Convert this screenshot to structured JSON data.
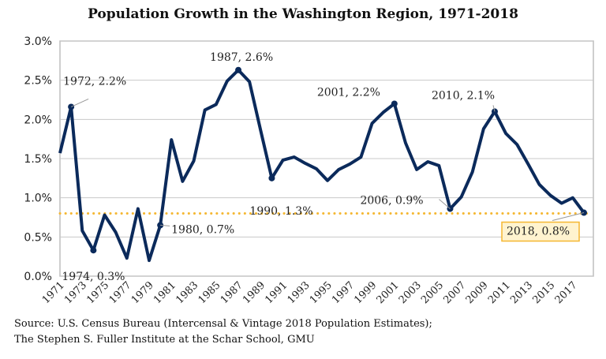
{
  "chart_data": {
    "type": "line",
    "title": "Population Growth in the Washington Region, 1971-2018",
    "xlabel": "",
    "ylabel": "",
    "ylim": [
      0,
      3.0
    ],
    "yticks": [
      "0.0%",
      "0.5%",
      "1.0%",
      "1.5%",
      "2.0%",
      "2.5%",
      "3.0%"
    ],
    "xticks": [
      "1971",
      "1973",
      "1975",
      "1977",
      "1979",
      "1981",
      "1983",
      "1985",
      "1987",
      "1989",
      "1991",
      "1993",
      "1995",
      "1997",
      "1999",
      "2001",
      "2003",
      "2005",
      "2007",
      "2009",
      "2011",
      "2013",
      "2015",
      "2017"
    ],
    "grid": true,
    "line_color": "#0b2a5b",
    "average_line": {
      "value": 0.8,
      "color": "#f5b731",
      "style": "dotted"
    },
    "x": [
      1971,
      1972,
      1973,
      1974,
      1975,
      1976,
      1977,
      1978,
      1979,
      1980,
      1981,
      1982,
      1983,
      1984,
      1985,
      1986,
      1987,
      1988,
      1989,
      1990,
      1991,
      1992,
      1993,
      1994,
      1995,
      1996,
      1997,
      1998,
      1999,
      2000,
      2001,
      2002,
      2003,
      2004,
      2005,
      2006,
      2007,
      2008,
      2009,
      2010,
      2011,
      2012,
      2013,
      2014,
      2015,
      2016,
      2017,
      2018
    ],
    "values": [
      1.57,
      2.16,
      0.58,
      0.33,
      0.78,
      0.56,
      0.23,
      0.86,
      0.2,
      0.65,
      1.74,
      1.21,
      1.47,
      2.12,
      2.19,
      2.49,
      2.63,
      2.48,
      1.86,
      1.25,
      1.48,
      1.52,
      1.44,
      1.37,
      1.22,
      1.36,
      1.43,
      1.52,
      1.95,
      2.09,
      2.2,
      1.7,
      1.36,
      1.46,
      1.41,
      0.86,
      1.01,
      1.33,
      1.88,
      2.1,
      1.82,
      1.68,
      1.43,
      1.17,
      1.03,
      0.93,
      1.0,
      0.81
    ],
    "annotations": [
      {
        "year": 1972,
        "text": "1972, 2.2%"
      },
      {
        "year": 1974,
        "text": "1974, 0.3%"
      },
      {
        "year": 1980,
        "text": "1980, 0.7%"
      },
      {
        "year": 1987,
        "text": "1987, 2.6%"
      },
      {
        "year": 1990,
        "text": "1990, 1.3%"
      },
      {
        "year": 2001,
        "text": "2001, 2.2%"
      },
      {
        "year": 2006,
        "text": "2006, 0.9%"
      },
      {
        "year": 2010,
        "text": "2010, 2.1%"
      },
      {
        "year": 2018,
        "text": "2018, 0.8%",
        "highlight": true
      }
    ]
  },
  "source": {
    "line1": "Source: U.S. Census Bureau (Intercensal & Vintage 2018 Population Estimates);",
    "line2": "The Stephen S. Fuller Institute at the Schar School, GMU"
  }
}
